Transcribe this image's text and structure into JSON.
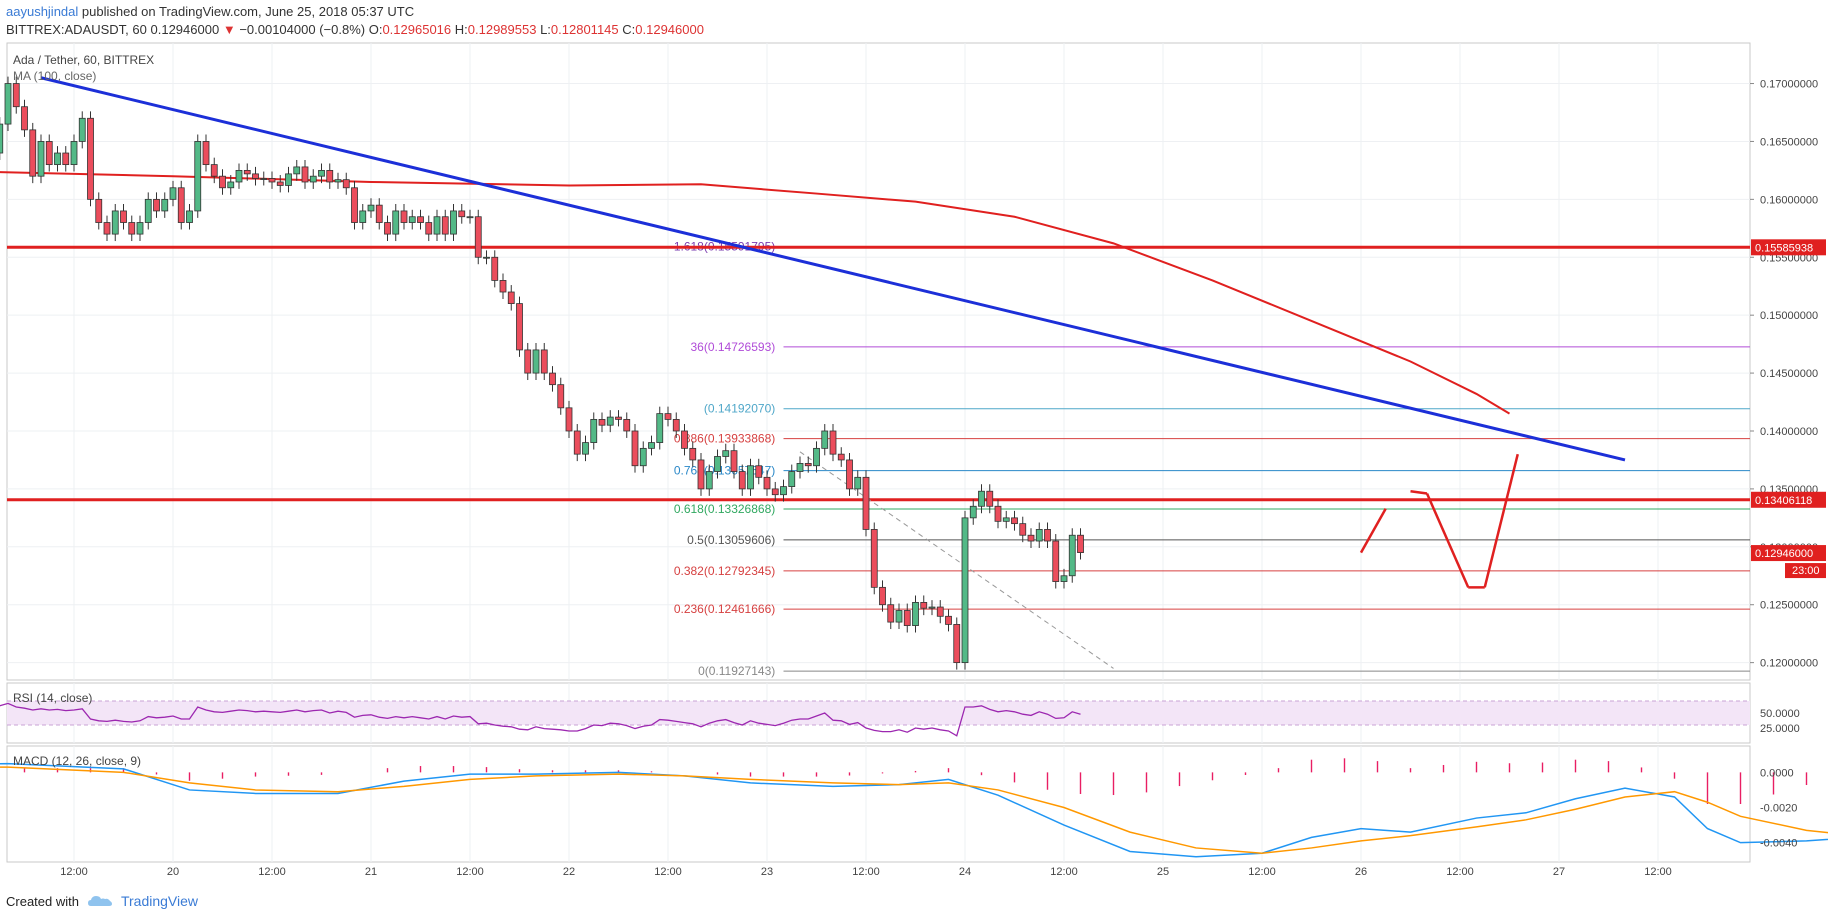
{
  "header": {
    "author": "aayushjindal",
    "published": "published on TradingView.com, June 25, 2018 05:37 UTC",
    "symbol": "BITTREX:ADAUSDT, 60",
    "last": "0.12946000",
    "arrow": "▼",
    "change": "−0.00104000 (−0.8%)",
    "o_label": "O:",
    "o": "0.12965016",
    "h_label": "H:",
    "h": "0.12989553",
    "l_label": "L:",
    "l": "0.12801145",
    "c_label": "C:",
    "c": "0.12946000"
  },
  "chart_data": {
    "type": "candlestick",
    "title": "Ada / Tether, 60, BITTREX",
    "indicator": "MA (100, close)",
    "ylim": [
      0.1185,
      0.1735
    ],
    "price_ticks": [
      "0.17000000",
      "0.16500000",
      "0.16000000",
      "0.15500000",
      "0.15000000",
      "0.14500000",
      "0.14000000",
      "0.13500000",
      "0.13000000",
      "0.12500000",
      "0.12000000"
    ],
    "price_tick_values": [
      0.17,
      0.165,
      0.16,
      0.155,
      0.15,
      0.145,
      0.14,
      0.135,
      0.13,
      0.125,
      0.12
    ],
    "time_labels": [
      "12:00",
      "20",
      "12:00",
      "21",
      "12:00",
      "22",
      "12:00",
      "23",
      "12:00",
      "24",
      "12:00",
      "25",
      "12:00",
      "26",
      "12:00",
      "27",
      "12:00"
    ],
    "time_label_hours": [
      -36,
      -24,
      -12,
      0,
      12,
      24,
      36,
      48,
      60,
      72,
      84,
      96,
      108,
      120,
      132,
      144,
      156
    ],
    "candles_close": [
      0.1625,
      0.1622,
      0.1618,
      0.1628,
      0.163,
      0.1633,
      0.1625,
      0.1628,
      0.164,
      0.1665,
      0.17,
      0.168,
      0.166,
      0.162,
      0.165,
      0.163,
      0.164,
      0.163,
      0.165,
      0.167,
      0.16,
      0.158,
      0.157,
      0.159,
      0.158,
      0.157,
      0.158,
      0.16,
      0.159,
      0.16,
      0.161,
      0.158,
      0.159,
      0.165,
      0.163,
      0.162,
      0.161,
      0.1615,
      0.1625,
      0.1622,
      0.1618,
      0.1618,
      0.1615,
      0.1612,
      0.1622,
      0.1628,
      0.1615,
      0.162,
      0.1625,
      0.1615,
      0.1617,
      0.161,
      0.158,
      0.159,
      0.1595,
      0.158,
      0.157,
      0.159,
      0.158,
      0.1585,
      0.158,
      0.157,
      0.1585,
      0.157,
      0.159,
      0.1585,
      0.1585,
      0.155,
      0.155,
      0.153,
      0.152,
      0.151,
      0.147,
      0.145,
      0.147,
      0.145,
      0.144,
      0.142,
      0.14,
      0.138,
      0.139,
      0.141,
      0.1405,
      0.1412,
      0.141,
      0.14,
      0.137,
      0.1385,
      0.139,
      0.1415,
      0.141,
      0.14,
      0.1385,
      0.1375,
      0.135,
      0.1365,
      0.1378,
      0.1383,
      0.1365,
      0.135,
      0.137,
      0.136,
      0.135,
      0.1345,
      0.1352,
      0.1365,
      0.1372,
      0.137,
      0.1385,
      0.14,
      0.138,
      0.1375,
      0.135,
      0.136,
      0.1315,
      0.1265,
      0.125,
      0.1235,
      0.1245,
      0.1232,
      0.1252,
      0.1247,
      0.1248,
      0.124,
      0.1233,
      0.12,
      0.1325,
      0.1335,
      0.1348,
      0.1335,
      0.1322,
      0.1325,
      0.132,
      0.131,
      0.1305,
      0.1315,
      0.1305,
      0.127,
      0.1275,
      0.131,
      0.1295
    ],
    "ma100": [
      [
        -54,
        0.1625
      ],
      [
        -24,
        0.162
      ],
      [
        0,
        0.1615
      ],
      [
        24,
        0.1612
      ],
      [
        40,
        0.1613
      ],
      [
        54,
        0.1605
      ],
      [
        66,
        0.1598
      ],
      [
        78,
        0.1585
      ],
      [
        90,
        0.1562
      ],
      [
        102,
        0.153
      ],
      [
        114,
        0.1495
      ],
      [
        126,
        0.146
      ],
      [
        134,
        0.1432
      ],
      [
        138,
        0.1415
      ]
    ],
    "trendline": [
      [
        -40,
        0.1705
      ],
      [
        152,
        0.1375
      ]
    ],
    "projection": [
      [
        120,
        0.1295
      ],
      [
        123,
        0.1333
      ],
      [
        126,
        0.1348
      ],
      [
        128,
        0.1346
      ],
      [
        133,
        0.1265
      ],
      [
        135,
        0.1265
      ],
      [
        139,
        0.138
      ]
    ],
    "dashed": [
      [
        52,
        0.1382
      ],
      [
        90,
        0.1195
      ]
    ],
    "resistance": {
      "value": 0.15585938,
      "label": "0.15585938",
      "color": "#e02020"
    },
    "support": {
      "value": 0.13406118,
      "label": "0.13406118",
      "color": "#e02020"
    },
    "last_price": {
      "value": 0.12946,
      "label": "0.12946000",
      "countdown": "23:00"
    },
    "fib_levels": [
      {
        "label": "1.618(0.15591795)",
        "value": 0.15591795,
        "color": "#7a3cb0"
      },
      {
        "label": "36(0.14726593)",
        "value": 0.14726593,
        "color": "#b04cd8"
      },
      {
        "label": "(0.14192070)",
        "value": 0.1419207,
        "color": "#4fa7c9"
      },
      {
        "label": "0.886(0.13933868)",
        "value": 0.13933868,
        "color": "#d64040"
      },
      {
        "label": "0.764(0.13657547)",
        "value": 0.13657547,
        "color": "#2a88c8"
      },
      {
        "label": "0.618(0.13326868)",
        "value": 0.13326868,
        "color": "#30a860"
      },
      {
        "label": "0.5(0.13059606)",
        "value": 0.13059606,
        "color": "#555555"
      },
      {
        "label": "0.382(0.12792345)",
        "value": 0.12792345,
        "color": "#d64040"
      },
      {
        "label": "0.236(0.12461666)",
        "value": 0.12461666,
        "color": "#d64040"
      },
      {
        "label": "0(0.11927143)",
        "value": 0.11927143,
        "color": "#888888"
      }
    ],
    "rsi": {
      "label": "RSI (14, close)",
      "ticks": [
        "50.0000",
        "25.0000"
      ],
      "tick_values": [
        50,
        25
      ],
      "band": [
        30,
        70
      ],
      "ylim": [
        0,
        100
      ],
      "values": [
        52,
        50,
        52,
        49,
        55,
        53,
        54,
        55,
        58,
        62,
        66,
        60,
        58,
        55,
        57,
        55,
        56,
        54,
        55,
        57,
        40,
        37,
        36,
        38,
        36,
        35,
        37,
        44,
        42,
        43,
        45,
        40,
        40,
        60,
        55,
        52,
        51,
        53,
        55,
        54,
        52,
        53,
        52,
        51,
        53,
        55,
        52,
        54,
        55,
        50,
        53,
        51,
        43,
        46,
        47,
        43,
        41,
        44,
        42,
        44,
        42,
        40,
        44,
        40,
        45,
        43,
        44,
        32,
        33,
        30,
        28,
        27,
        23,
        22,
        27,
        24,
        23,
        22,
        20,
        20,
        24,
        30,
        29,
        33,
        32,
        29,
        24,
        28,
        30,
        39,
        38,
        36,
        34,
        32,
        27,
        33,
        37,
        39,
        34,
        30,
        37,
        33,
        31,
        29,
        33,
        38,
        40,
        40,
        45,
        50,
        38,
        37,
        31,
        34,
        25,
        21,
        19,
        19,
        22,
        18,
        25,
        23,
        25,
        22,
        20,
        12,
        60,
        60,
        62,
        56,
        52,
        54,
        52,
        48,
        46,
        52,
        48,
        41,
        42,
        52,
        48
      ]
    },
    "macd": {
      "label": "MACD (12, 26, close, 9)",
      "ticks": [
        "0.0000",
        "-0.0020",
        "-0.0040"
      ],
      "tick_values": [
        0,
        -0.002,
        -0.004
      ],
      "ylim": [
        -0.0051,
        0.0015
      ],
      "macd_line": [
        [
          -54,
          0.0004
        ],
        [
          -44,
          0.0005
        ],
        [
          -30,
          0.0002
        ],
        [
          -22,
          -0.001
        ],
        [
          -14,
          -0.0012
        ],
        [
          -4,
          -0.0012
        ],
        [
          4,
          -0.0005
        ],
        [
          12,
          -0.0001
        ],
        [
          20,
          -0.0001
        ],
        [
          30,
          0.0
        ],
        [
          38,
          -0.0002
        ],
        [
          46,
          -0.0006
        ],
        [
          56,
          -0.0008
        ],
        [
          64,
          -0.0007
        ],
        [
          70,
          -0.0004
        ],
        [
          76,
          -0.0013
        ],
        [
          84,
          -0.003
        ],
        [
          92,
          -0.0045
        ],
        [
          100,
          -0.0048
        ],
        [
          108,
          -0.0046
        ],
        [
          114,
          -0.0037
        ],
        [
          120,
          -0.0032
        ],
        [
          126,
          -0.0034
        ],
        [
          134,
          -0.0026
        ],
        [
          140,
          -0.0023
        ],
        [
          146,
          -0.0015
        ],
        [
          152,
          -0.0009
        ],
        [
          158,
          -0.0014
        ],
        [
          162,
          -0.0032
        ],
        [
          166,
          -0.004
        ],
        [
          174,
          -0.0039
        ],
        [
          180,
          -0.0037
        ],
        [
          184,
          -0.0033
        ],
        [
          188,
          -0.0016
        ],
        [
          194,
          -0.0005
        ],
        [
          200,
          -0.0003
        ],
        [
          204,
          -0.0004
        ],
        [
          206,
          -0.0006
        ]
      ],
      "signal_line": [
        [
          -54,
          0.0003
        ],
        [
          -44,
          0.0003
        ],
        [
          -30,
          0.0
        ],
        [
          -22,
          -0.0006
        ],
        [
          -14,
          -0.001
        ],
        [
          -4,
          -0.0011
        ],
        [
          4,
          -0.0008
        ],
        [
          12,
          -0.0004
        ],
        [
          20,
          -0.0002
        ],
        [
          30,
          -0.0001
        ],
        [
          38,
          -0.0002
        ],
        [
          46,
          -0.0004
        ],
        [
          56,
          -0.0006
        ],
        [
          64,
          -0.0007
        ],
        [
          70,
          -0.0006
        ],
        [
          76,
          -0.001
        ],
        [
          84,
          -0.002
        ],
        [
          92,
          -0.0034
        ],
        [
          100,
          -0.0043
        ],
        [
          108,
          -0.0046
        ],
        [
          114,
          -0.0043
        ],
        [
          120,
          -0.0039
        ],
        [
          126,
          -0.0036
        ],
        [
          134,
          -0.0031
        ],
        [
          140,
          -0.0027
        ],
        [
          146,
          -0.0021
        ],
        [
          152,
          -0.0014
        ],
        [
          158,
          -0.0011
        ],
        [
          162,
          -0.0017
        ],
        [
          166,
          -0.0025
        ],
        [
          174,
          -0.0033
        ],
        [
          180,
          -0.0036
        ],
        [
          184,
          -0.0035
        ],
        [
          188,
          -0.0027
        ],
        [
          194,
          -0.0016
        ],
        [
          200,
          -0.0009
        ],
        [
          204,
          -0.0006
        ],
        [
          206,
          -0.0006
        ]
      ]
    }
  },
  "footer": {
    "created_with": "Created with",
    "brand": "TradingView"
  },
  "colors": {
    "up": "#53b987",
    "down": "#eb4d5c",
    "ma": "#e0201f",
    "trend": "#1c2fd8",
    "projection": "#e02020",
    "rsi": "#9c27b0",
    "rsi_band": "#f3e5f7",
    "macd": "#2196f3",
    "signal": "#ff9800",
    "hist": "#e91e63",
    "last_tag": "#e0201f"
  }
}
